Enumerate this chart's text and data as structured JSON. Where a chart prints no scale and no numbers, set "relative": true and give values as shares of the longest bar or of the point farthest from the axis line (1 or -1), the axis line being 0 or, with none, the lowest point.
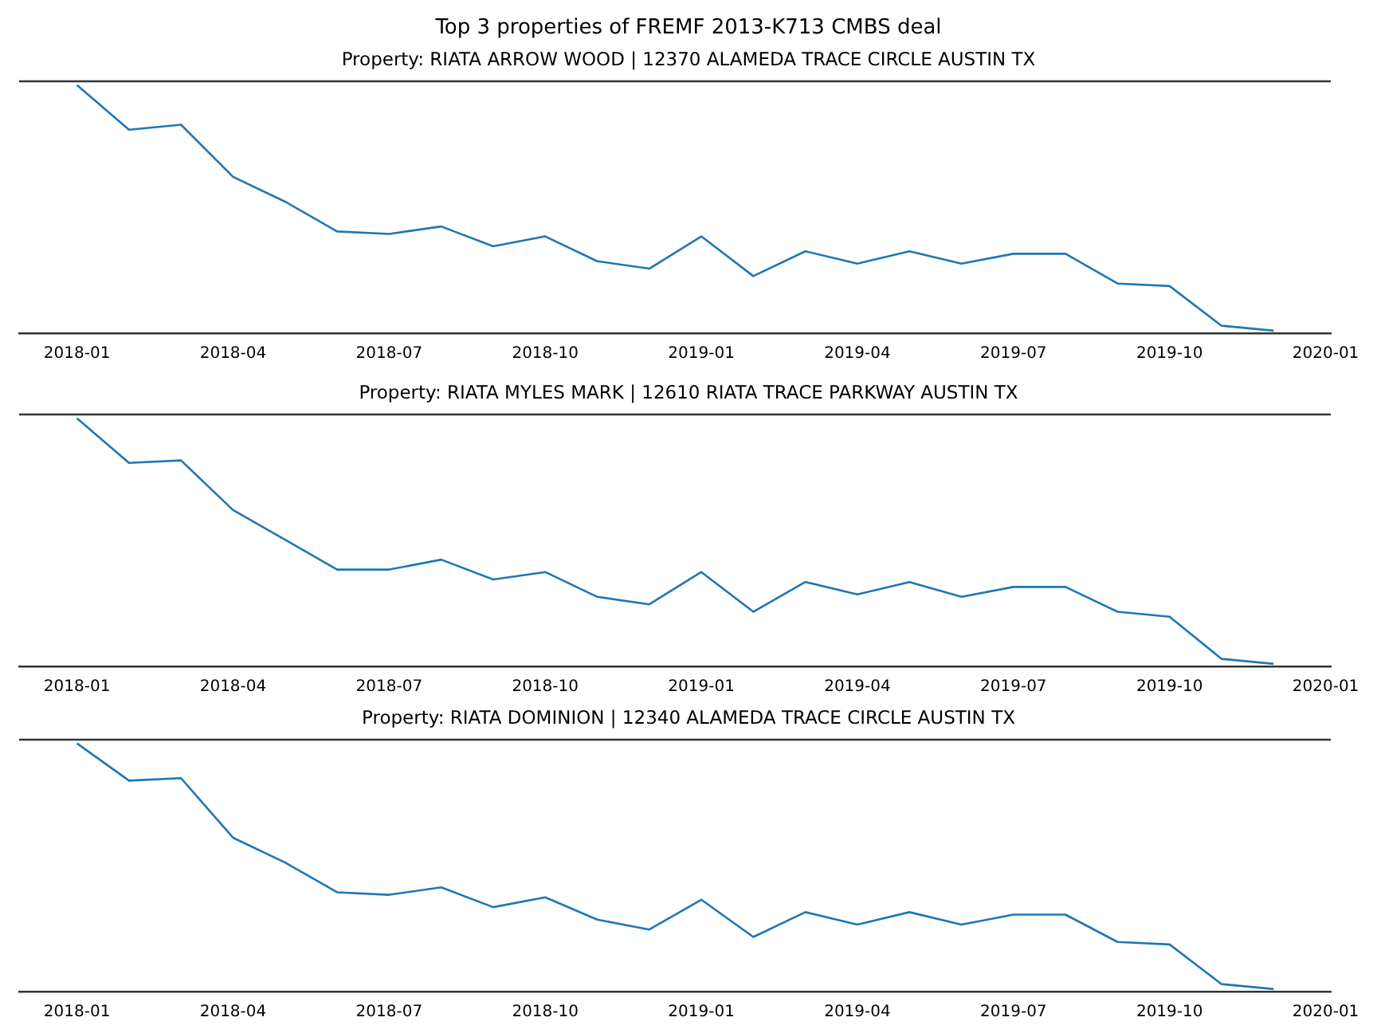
{
  "chart_data": [
    {
      "type": "line",
      "title": "Top 3 properties of FREMF 2013-K713 CMBS deal",
      "subtitle": "Property: RIATA ARROW WOOD | 12370 ALAMEDA TRACE CIRCLE AUSTIN TX",
      "relative": true,
      "grid": false,
      "legend": false,
      "marker": "none",
      "line_style": "solid",
      "tick_labels": "x",
      "x": [
        "2018-01",
        "2018-02",
        "2018-03",
        "2018-04",
        "2018-05",
        "2018-06",
        "2018-07",
        "2018-08",
        "2018-09",
        "2018-10",
        "2018-11",
        "2018-12",
        "2019-01",
        "2019-02",
        "2019-03",
        "2019-04",
        "2019-05",
        "2019-06",
        "2019-07",
        "2019-08",
        "2019-09",
        "2019-10",
        "2019-11",
        "2019-12"
      ],
      "xlim": [
        "2017-11-28",
        "2020-01-04"
      ],
      "xticks": [
        "2018-01",
        "2018-04",
        "2018-07",
        "2018-10",
        "2019-01",
        "2019-04",
        "2019-07",
        "2019-10",
        "2020-01"
      ],
      "series": [
        {
          "color": "#1f77b4",
          "values": [
            1.0,
            0.82,
            0.84,
            0.63,
            0.53,
            0.41,
            0.4,
            0.43,
            0.35,
            0.39,
            0.29,
            0.26,
            0.39,
            0.23,
            0.33,
            0.28,
            0.33,
            0.28,
            0.32,
            0.32,
            0.2,
            0.19,
            0.03,
            0.01
          ]
        }
      ]
    },
    {
      "type": "line",
      "title": "Property: RIATA MYLES MARK | 12610 RIATA TRACE PARKWAY AUSTIN TX",
      "relative": true,
      "grid": false,
      "legend": false,
      "marker": "none",
      "line_style": "solid",
      "tick_labels": "x",
      "x": [
        "2018-01",
        "2018-02",
        "2018-03",
        "2018-04",
        "2018-05",
        "2018-06",
        "2018-07",
        "2018-08",
        "2018-09",
        "2018-10",
        "2018-11",
        "2018-12",
        "2019-01",
        "2019-02",
        "2019-03",
        "2019-04",
        "2019-05",
        "2019-06",
        "2019-07",
        "2019-08",
        "2019-09",
        "2019-10",
        "2019-11",
        "2019-12"
      ],
      "xlim": [
        "2017-11-28",
        "2020-01-04"
      ],
      "xticks": [
        "2018-01",
        "2018-04",
        "2018-07",
        "2018-10",
        "2019-01",
        "2019-04",
        "2019-07",
        "2019-10",
        "2020-01"
      ],
      "series": [
        {
          "color": "#1f77b4",
          "values": [
            1.0,
            0.82,
            0.83,
            0.63,
            0.51,
            0.39,
            0.39,
            0.43,
            0.35,
            0.38,
            0.28,
            0.25,
            0.38,
            0.22,
            0.34,
            0.29,
            0.34,
            0.28,
            0.32,
            0.32,
            0.22,
            0.2,
            0.03,
            0.01
          ]
        }
      ]
    },
    {
      "type": "line",
      "title": "Property: RIATA DOMINION | 12340 ALAMEDA TRACE CIRCLE AUSTIN TX",
      "relative": true,
      "grid": false,
      "legend": false,
      "marker": "none",
      "line_style": "solid",
      "tick_labels": "x",
      "x": [
        "2018-01",
        "2018-02",
        "2018-03",
        "2018-04",
        "2018-05",
        "2018-06",
        "2018-07",
        "2018-08",
        "2018-09",
        "2018-10",
        "2018-11",
        "2018-12",
        "2019-01",
        "2019-02",
        "2019-03",
        "2019-04",
        "2019-05",
        "2019-06",
        "2019-07",
        "2019-08",
        "2019-09",
        "2019-10",
        "2019-11",
        "2019-12"
      ],
      "xlim": [
        "2017-11-28",
        "2020-01-04"
      ],
      "xticks": [
        "2018-01",
        "2018-04",
        "2018-07",
        "2018-10",
        "2019-01",
        "2019-04",
        "2019-07",
        "2019-10",
        "2020-01"
      ],
      "series": [
        {
          "color": "#1f77b4",
          "values": [
            1.0,
            0.85,
            0.86,
            0.62,
            0.52,
            0.4,
            0.39,
            0.42,
            0.34,
            0.38,
            0.29,
            0.25,
            0.37,
            0.22,
            0.32,
            0.27,
            0.32,
            0.27,
            0.31,
            0.31,
            0.2,
            0.19,
            0.03,
            0.01
          ]
        }
      ]
    }
  ]
}
